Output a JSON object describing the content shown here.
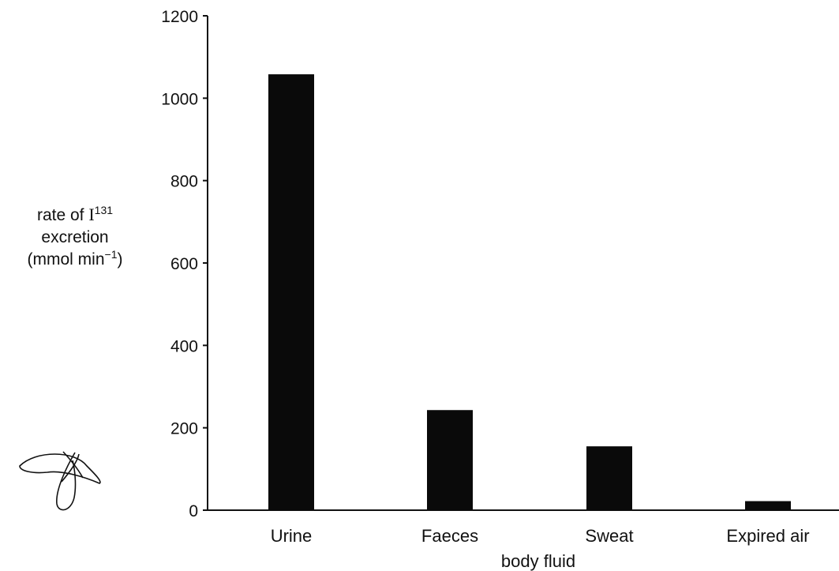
{
  "chart_data": {
    "type": "bar",
    "categories": [
      "Urine",
      "Faeces",
      "Sweat",
      "Expired air"
    ],
    "values": [
      1058,
      243,
      155,
      22
    ],
    "xlabel": "body fluid",
    "ylabel": {
      "line1_prefix": "rate of ",
      "line1_symbol": "I",
      "line1_sup": "131",
      "line2": "excretion",
      "line3_prefix": "(mmol min",
      "line3_sup": "−1",
      "line3_suffix": ")"
    },
    "yticks": [
      "0",
      "200",
      "400",
      "600",
      "800",
      "1000",
      "1200"
    ],
    "ylim": [
      0,
      1200
    ],
    "bar_color": "#0a0a0a",
    "grid": false
  }
}
